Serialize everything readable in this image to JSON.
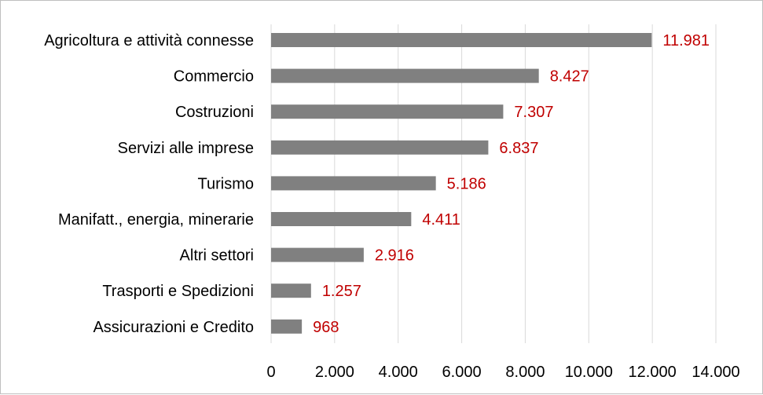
{
  "chart_data": {
    "type": "bar",
    "orientation": "horizontal",
    "categories": [
      "Agricoltura e attività connesse",
      "Commercio",
      "Costruzioni",
      "Servizi alle imprese",
      "Turismo",
      "Manifatt., energia, minerarie",
      "Altri settori",
      "Trasporti e Spedizioni",
      "Assicurazioni e Credito"
    ],
    "values": [
      11981,
      8427,
      7307,
      6837,
      5186,
      4411,
      2916,
      1257,
      968
    ],
    "value_labels": [
      "11.981",
      "8.427",
      "7.307",
      "6.837",
      "5.186",
      "4.411",
      "2.916",
      "1.257",
      "968"
    ],
    "ticks": [
      0,
      2000,
      4000,
      6000,
      8000,
      10000,
      12000,
      14000
    ],
    "tick_labels": [
      "0",
      "2.000",
      "4.000",
      "6.000",
      "8.000",
      "10.000",
      "12.000",
      "14.000"
    ],
    "xlim": [
      0,
      14000
    ],
    "grid": "vertical",
    "legend": "none",
    "bar_color": "#808080",
    "label_color": "#c00000",
    "grid_color": "#d9d9d9"
  }
}
